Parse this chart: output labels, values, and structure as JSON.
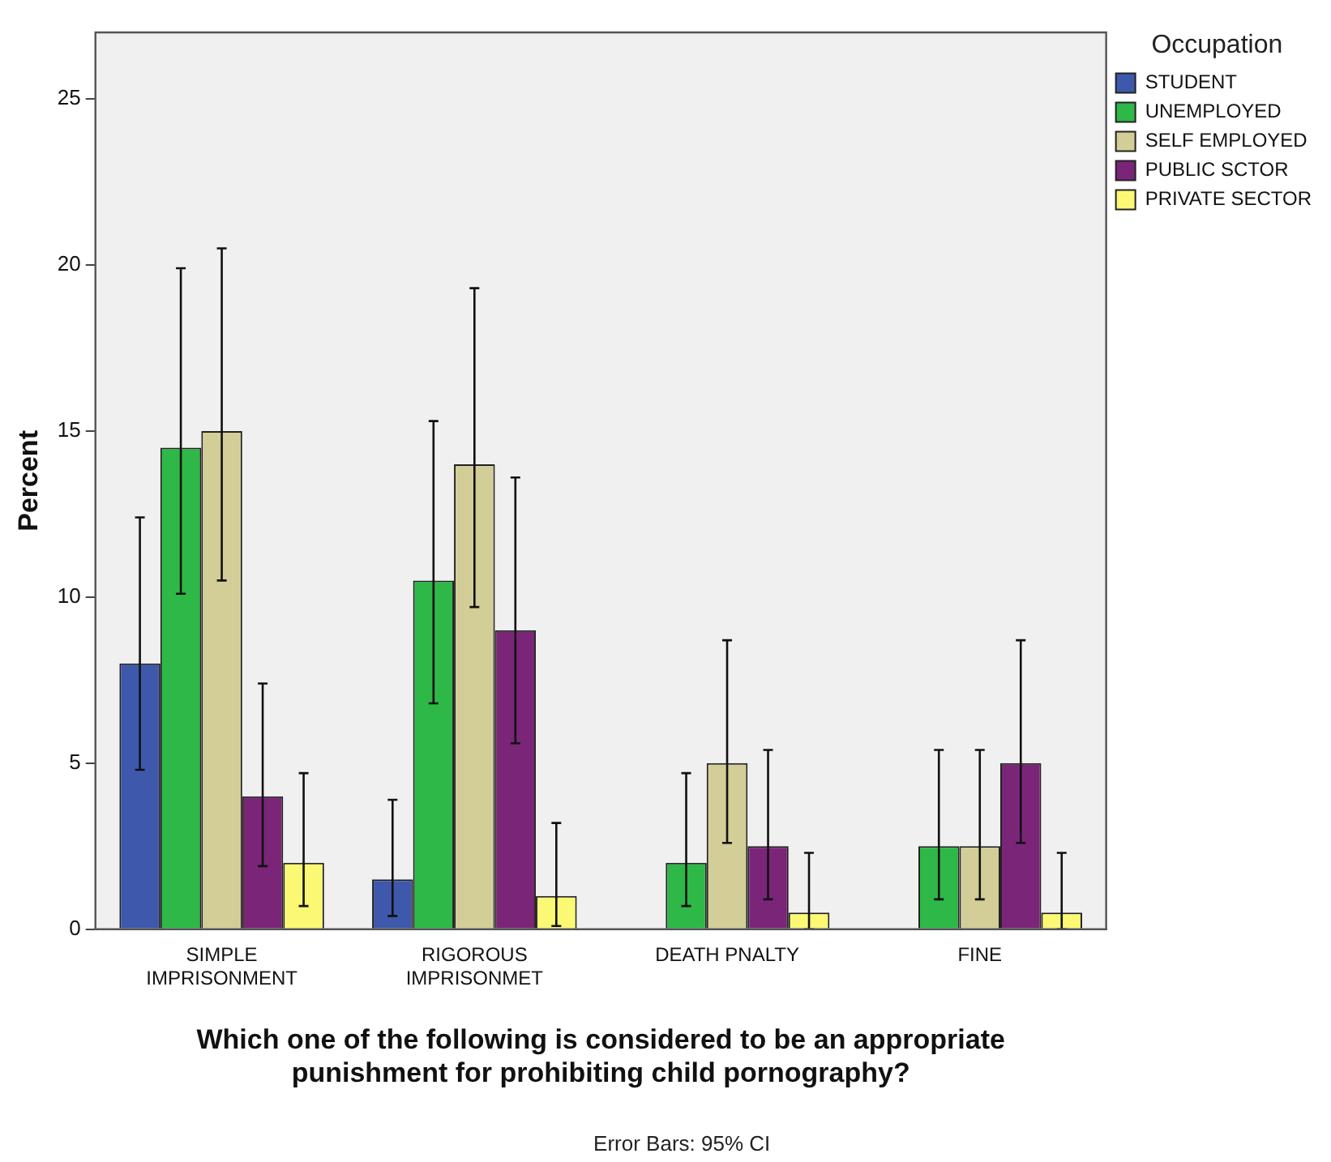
{
  "chart_data": {
    "type": "bar",
    "xlabel": "Which one of the following is considered to be an appropriate punishment for prohibiting child pornography?",
    "ylabel": "Percent",
    "legend_title": "Occupation",
    "legend": "top right",
    "grid": false,
    "categories": [
      "SIMPLE IMPRISONMENT",
      "RIGOROUS IMPRISONMET",
      "DEATH PNALTY",
      "FINE"
    ],
    "ylim": [
      0,
      27
    ],
    "yticks": [
      0,
      5,
      10,
      15,
      20,
      25
    ],
    "series": [
      {
        "name": "STUDENT",
        "color": "#3e58ac",
        "values": [
          8,
          1.5,
          0,
          0
        ],
        "errors": [
          [
            4.8,
            12.4
          ],
          [
            0.4,
            3.9
          ],
          null,
          null
        ]
      },
      {
        "name": "UNEMPLOYED",
        "color": "#2eb848",
        "values": [
          14.5,
          10.5,
          2,
          2.5
        ],
        "errors": [
          [
            10.1,
            19.9
          ],
          [
            6.8,
            15.3
          ],
          [
            0.7,
            4.7
          ],
          [
            0.9,
            5.4
          ]
        ]
      },
      {
        "name": "SELF EMPLOYED",
        "color": "#d3ce97",
        "values": [
          15,
          14,
          5,
          2.5
        ],
        "errors": [
          [
            10.5,
            20.5
          ],
          [
            9.7,
            19.3
          ],
          [
            2.6,
            8.7
          ],
          [
            0.9,
            5.4
          ]
        ]
      },
      {
        "name": "PUBLIC SCTOR",
        "color": "#7b2579",
        "values": [
          4,
          9,
          2.5,
          5
        ],
        "errors": [
          [
            1.9,
            7.4
          ],
          [
            5.6,
            13.6
          ],
          [
            0.9,
            5.4
          ],
          [
            2.6,
            8.7
          ]
        ]
      },
      {
        "name": "PRIVATE SECTOR",
        "color": "#fbf873",
        "values": [
          2,
          1,
          0.5,
          0.5
        ],
        "errors": [
          [
            0.7,
            4.7
          ],
          [
            0.1,
            3.2
          ],
          [
            0,
            2.3
          ],
          [
            0,
            2.3
          ]
        ]
      }
    ],
    "annotations": [
      "Error Bars: 95% CI"
    ]
  }
}
